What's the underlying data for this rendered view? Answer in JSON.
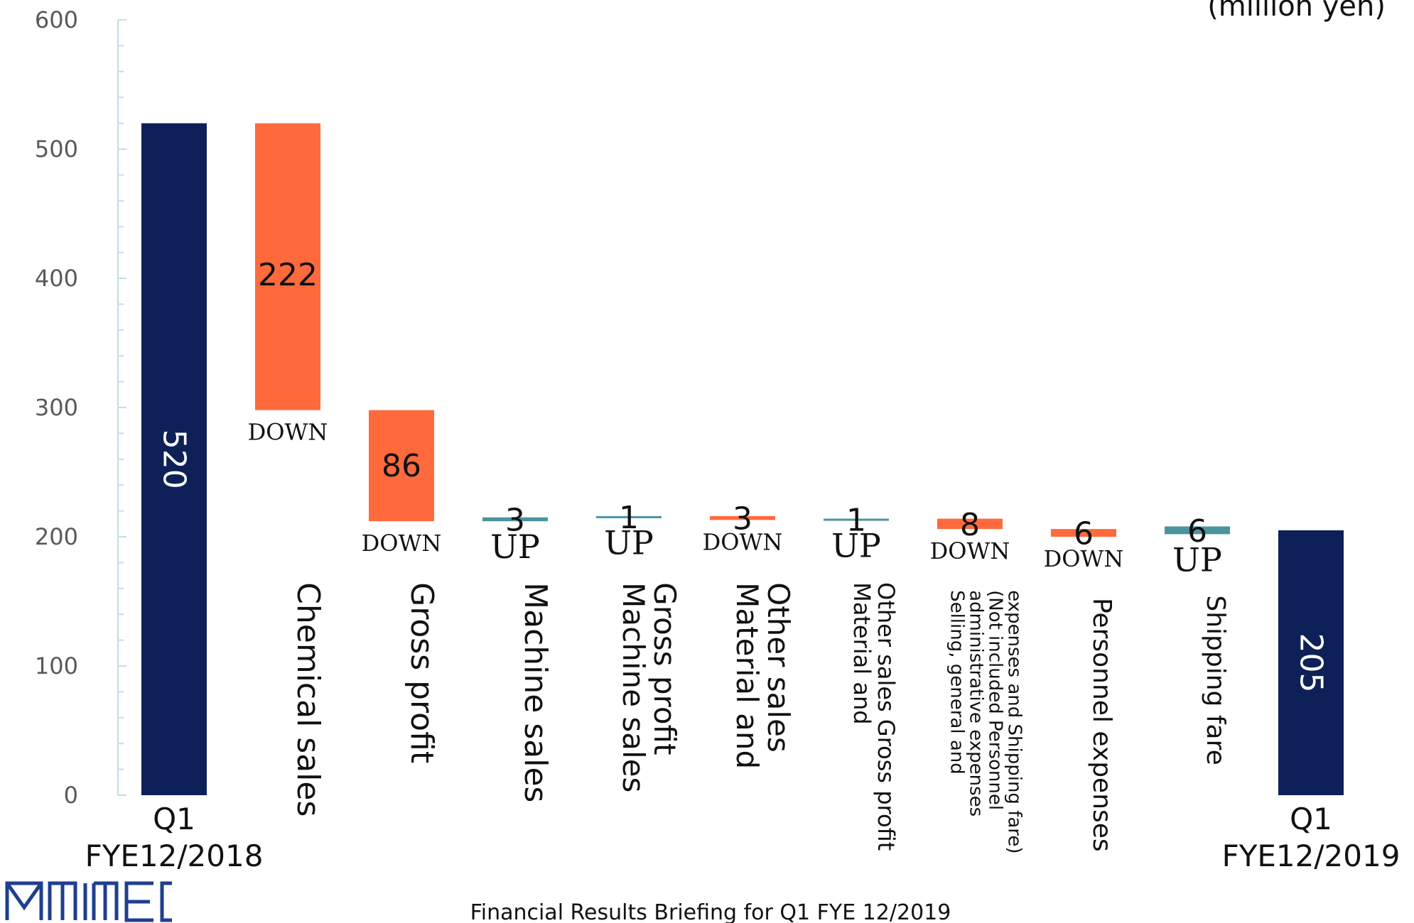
{
  "chart_data": {
    "type": "bar",
    "subtype": "waterfall",
    "unit_label": "(million yen)",
    "ylim": [
      0,
      600
    ],
    "yticks": [
      0,
      100,
      200,
      300,
      400,
      500,
      600
    ],
    "grid": false,
    "steps": [
      {
        "label": "Q1\nFYE12/2018",
        "value": 520,
        "kind": "total",
        "direction": ""
      },
      {
        "label": "Chemical sales",
        "value": 222,
        "kind": "down",
        "direction": "DOWN"
      },
      {
        "label": "Gross profit",
        "value": 86,
        "kind": "down",
        "direction": "DOWN"
      },
      {
        "label": "Machine sales",
        "value": 3,
        "kind": "up",
        "direction": "UP"
      },
      {
        "label": "Machine sales\nGross profit",
        "value": 1,
        "kind": "up",
        "direction": "UP"
      },
      {
        "label": "Material and\nOther sales",
        "value": 3,
        "kind": "down",
        "direction": "DOWN"
      },
      {
        "label": "Material and\nOther sales Gross profit",
        "value": 1,
        "kind": "up",
        "direction": "UP"
      },
      {
        "label": "Selling, general and\nadministrative expenses\n(Not included Personnel\nexpenses and Shipping fare)",
        "value": 8,
        "kind": "down",
        "direction": "DOWN"
      },
      {
        "label": "Personnel expenses",
        "value": 6,
        "kind": "down",
        "direction": "DOWN"
      },
      {
        "label": "Shipping fare",
        "value": 6,
        "kind": "up",
        "direction": "UP"
      },
      {
        "label": "Q1\nFYE12/2019",
        "value": 205,
        "kind": "total",
        "direction": ""
      }
    ],
    "colors": {
      "total": "#0e2058",
      "down": "#ff6a3d",
      "up": "#4a949c",
      "axis": "#bfe0e4"
    }
  },
  "footer": {
    "text": "Financial Results Briefing for Q1 FYE 12/2019"
  },
  "logo": {
    "text": "MMEC"
  }
}
